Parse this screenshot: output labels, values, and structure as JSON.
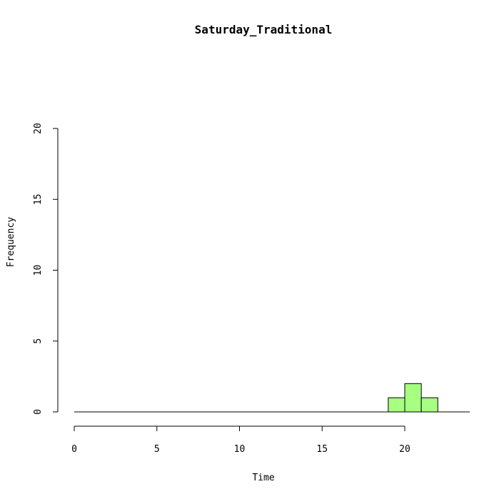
{
  "chart_data": {
    "type": "bar",
    "title": "Saturday_Traditional",
    "xlabel": "Time",
    "ylabel": "Frequency",
    "xlim": [
      0,
      24
    ],
    "ylim": [
      0,
      20
    ],
    "x_ticks": [
      "0",
      "5",
      "10",
      "15",
      "20"
    ],
    "y_ticks": [
      "0",
      "5",
      "10",
      "15",
      "20"
    ],
    "bins": [
      {
        "start": 19,
        "end": 20,
        "count": 1
      },
      {
        "start": 20,
        "end": 21,
        "count": 2
      },
      {
        "start": 21,
        "end": 22,
        "count": 1
      }
    ],
    "bar_color": "#a6ff80",
    "grid": false
  }
}
